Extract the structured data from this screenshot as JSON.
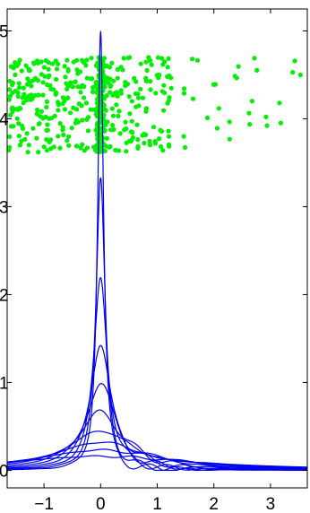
{
  "chart_data": {
    "type": "line",
    "title": "",
    "xlabel": "",
    "ylabel": "",
    "xlim": [
      -1.65,
      3.65
    ],
    "ylim": [
      -0.2,
      5.25
    ],
    "grid": false,
    "legend": "none",
    "x_ticks": [
      -1,
      0,
      1,
      2,
      3
    ],
    "x_tick_labels": [
      "−1",
      "0",
      "1",
      "2",
      "3"
    ],
    "y_ticks": [
      0,
      1,
      2,
      3,
      4,
      5
    ],
    "y_tick_labels": [
      "0",
      "1",
      "2",
      "3",
      "4",
      "5"
    ],
    "colors": {
      "lines": "#0000ee",
      "points": "#00ee00",
      "axes": "#000000"
    },
    "curve_family": {
      "shape": "cauchy-kernel estimates centered at 0",
      "peak_heights": [
        5.0,
        3.3,
        2.2,
        1.45,
        0.97,
        0.66,
        0.45,
        0.32,
        0.23,
        0.16
      ],
      "center": 0
    },
    "scatter": {
      "x_range": [
        -1.63,
        3.6
      ],
      "y_range": [
        3.62,
        4.7
      ],
      "count": 520,
      "note_center_concentration": true
    }
  }
}
